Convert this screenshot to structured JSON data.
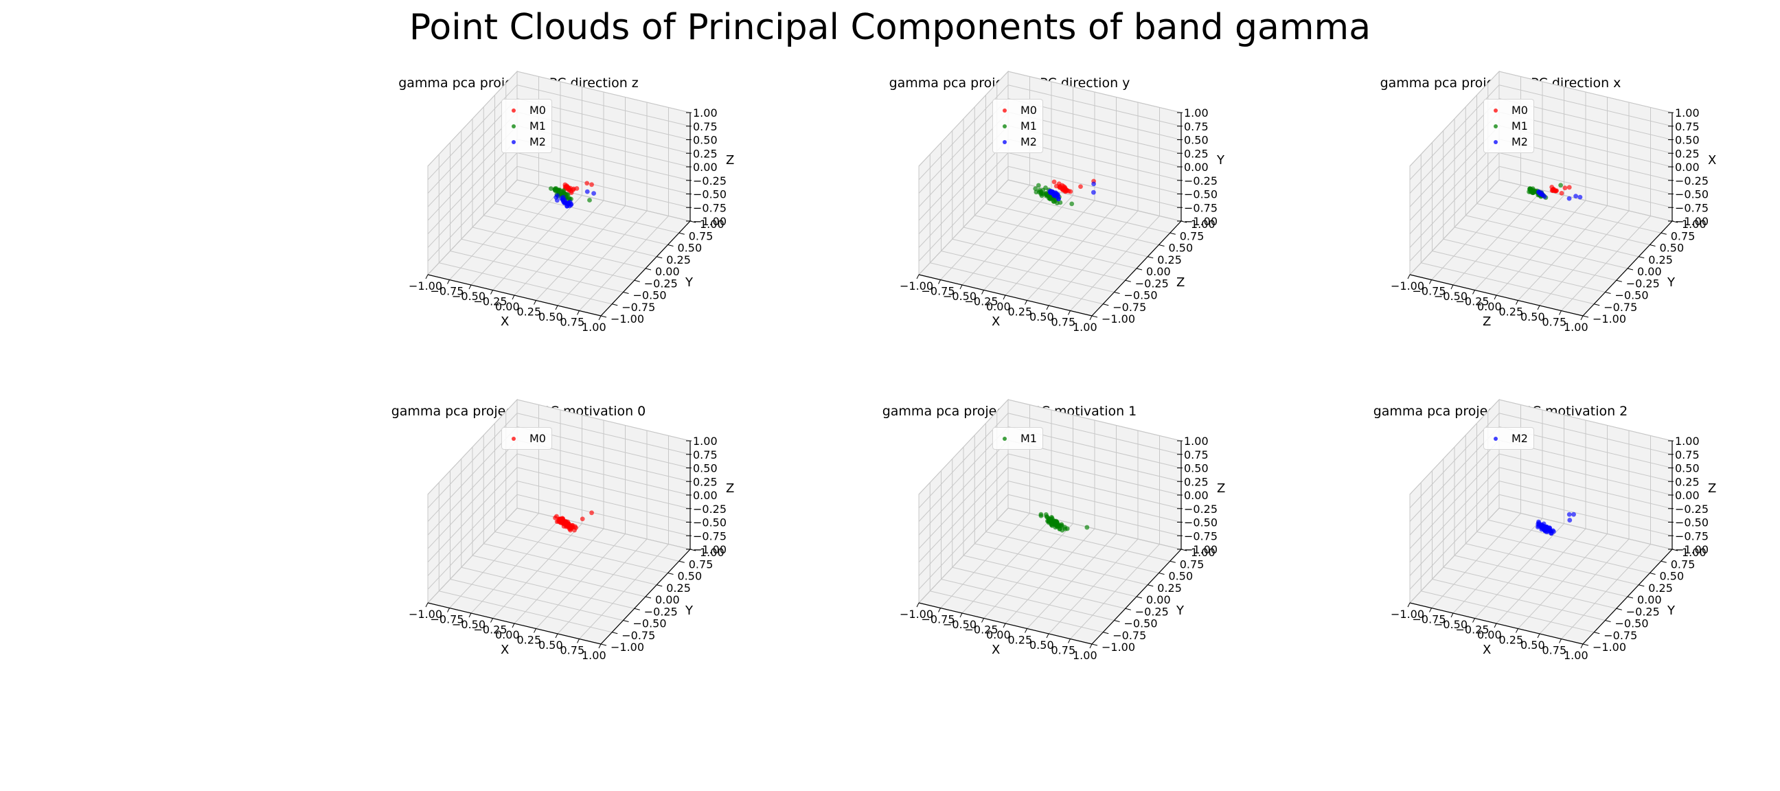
{
  "figure": {
    "title": "Point Clouds of Principal Components of band gamma"
  },
  "colors": {
    "M0": "#ff0000",
    "M1": "#008000",
    "M2": "#0000ff",
    "pane": "#f2f2f2",
    "grid": "#c8c8c8"
  },
  "chart_data": [
    {
      "type": "scatter",
      "title": "gamma pca projection PC direction z",
      "xlabel": "X",
      "ylabel": "Y",
      "zlabel": "Z",
      "xlim": [
        -1,
        1
      ],
      "ylim": [
        -1,
        1
      ],
      "zlim": [
        -1,
        1
      ],
      "ticks": [
        "−1.00",
        "−0.75",
        "−0.50",
        "−0.25",
        "0.00",
        "0.25",
        "0.50",
        "0.75",
        "1.00"
      ],
      "legend": [
        "M0",
        "M1",
        "M2"
      ],
      "series": [
        {
          "name": "M0",
          "clusters": [
            {
              "center": [
                0.05,
                0.1,
                0.05
              ],
              "spread": [
                0.07,
                0.05,
                0.05
              ],
              "count": 20
            }
          ],
          "outliers": [
            [
              0.3,
              0.15,
              0.15
            ],
            [
              0.22,
              0.2,
              0.1
            ],
            [
              0.18,
              0.05,
              0.12
            ]
          ]
        },
        {
          "name": "M1",
          "clusters": [
            {
              "center": [
                0.02,
                0.05,
                -0.05
              ],
              "spread": [
                0.1,
                0.08,
                0.07
              ],
              "count": 45
            }
          ],
          "outliers": [
            [
              0.25,
              0.2,
              -0.2
            ],
            [
              0.15,
              -0.05,
              0.0
            ]
          ]
        },
        {
          "name": "M2",
          "clusters": [
            {
              "center": [
                0.06,
                0.0,
                -0.12
              ],
              "spread": [
                0.07,
                0.06,
                0.05
              ],
              "count": 25
            }
          ],
          "outliers": [
            [
              0.35,
              0.1,
              0.05
            ],
            [
              0.25,
              0.15,
              0.0
            ]
          ]
        }
      ]
    },
    {
      "type": "scatter",
      "title": "gamma pca projection PC direction y",
      "xlabel": "X",
      "ylabel": "Z",
      "zlabel": "Y",
      "xlim": [
        -1,
        1
      ],
      "ylim": [
        -1,
        1
      ],
      "zlim": [
        -1,
        1
      ],
      "ticks": [
        "−1.00",
        "−0.75",
        "−0.50",
        "−0.25",
        "0.00",
        "0.25",
        "0.50",
        "0.75",
        "1.00"
      ],
      "legend": [
        "M0",
        "M1",
        "M2"
      ],
      "series": [
        {
          "name": "M0",
          "clusters": [
            {
              "center": [
                0.08,
                0.15,
                0.0
              ],
              "spread": [
                0.07,
                0.05,
                0.05
              ],
              "count": 22
            }
          ],
          "outliers": [
            [
              0.35,
              0.3,
              0.1
            ],
            [
              0.25,
              0.2,
              0.05
            ]
          ]
        },
        {
          "name": "M1",
          "clusters": [
            {
              "center": [
                0.0,
                0.0,
                -0.05
              ],
              "spread": [
                0.12,
                0.1,
                0.06
              ],
              "count": 50
            }
          ],
          "outliers": [
            [
              0.2,
              0.1,
              -0.2
            ]
          ]
        },
        {
          "name": "M2",
          "clusters": [
            {
              "center": [
                0.02,
                0.05,
                -0.05
              ],
              "spread": [
                0.07,
                0.05,
                0.05
              ],
              "count": 25
            }
          ],
          "outliers": [
            [
              0.4,
              0.2,
              0.0
            ],
            [
              0.35,
              0.3,
              0.05
            ]
          ]
        }
      ]
    },
    {
      "type": "scatter",
      "title": "gamma pca projection PC direction x",
      "xlabel": "Z",
      "ylabel": "Y",
      "zlabel": "X",
      "xlim": [
        -1,
        1
      ],
      "ylim": [
        -1,
        1
      ],
      "zlim": [
        -1,
        1
      ],
      "ticks": [
        "−1.00",
        "−0.75",
        "−0.50",
        "−0.25",
        "0.00",
        "0.25",
        "0.50",
        "0.75",
        "1.00"
      ],
      "legend": [
        "M0",
        "M1",
        "M2"
      ],
      "series": [
        {
          "name": "M0",
          "clusters": [
            {
              "center": [
                0.1,
                0.1,
                0.02
              ],
              "spread": [
                0.05,
                0.04,
                0.03
              ],
              "count": 12
            }
          ],
          "outliers": [
            [
              0.2,
              0.15,
              0.05
            ],
            [
              0.25,
              0.15,
              0.08
            ]
          ]
        },
        {
          "name": "M1",
          "clusters": [
            {
              "center": [
                -0.05,
                0.0,
                0.0
              ],
              "spread": [
                0.08,
                0.05,
                0.03
              ],
              "count": 40
            }
          ],
          "outliers": [
            [
              0.15,
              0.15,
              0.08
            ]
          ]
        },
        {
          "name": "M2",
          "clusters": [
            {
              "center": [
                0.0,
                0.0,
                0.0
              ],
              "spread": [
                0.04,
                0.03,
                0.02
              ],
              "count": 8
            }
          ],
          "outliers": [
            [
              0.35,
              0.1,
              0.0
            ],
            [
              0.4,
              0.1,
              0.0
            ],
            [
              0.3,
              0.05,
              -0.02
            ]
          ]
        }
      ]
    },
    {
      "type": "scatter",
      "title": "gamma pca projection PC motivation 0",
      "xlabel": "X",
      "ylabel": "Y",
      "zlabel": "Z",
      "xlim": [
        -1,
        1
      ],
      "ylim": [
        -1,
        1
      ],
      "zlim": [
        -1,
        1
      ],
      "ticks": [
        "−1.00",
        "−0.75",
        "−0.50",
        "−0.25",
        "0.00",
        "0.25",
        "0.50",
        "0.75",
        "1.00"
      ],
      "legend": [
        "M0"
      ],
      "series": [
        {
          "name": "M0",
          "clusters": [
            {
              "center": [
                0.05,
                0.05,
                -0.05
              ],
              "spread": [
                0.09,
                0.07,
                0.06
              ],
              "count": 70
            }
          ],
          "outliers": [
            [
              0.3,
              0.15,
              0.15
            ],
            [
              0.22,
              0.1,
              0.05
            ]
          ]
        }
      ]
    },
    {
      "type": "scatter",
      "title": "gamma pca projection PC motivation 1",
      "xlabel": "X",
      "ylabel": "Y",
      "zlabel": "Z",
      "xlim": [
        -1,
        1
      ],
      "ylim": [
        -1,
        1
      ],
      "zlim": [
        -1,
        1
      ],
      "ticks": [
        "−1.00",
        "−0.75",
        "−0.50",
        "−0.25",
        "0.00",
        "0.25",
        "0.50",
        "0.75",
        "1.00"
      ],
      "legend": [
        "M1"
      ],
      "series": [
        {
          "name": "M1",
          "clusters": [
            {
              "center": [
                0.02,
                0.05,
                -0.05
              ],
              "spread": [
                0.11,
                0.08,
                0.07
              ],
              "count": 60
            }
          ],
          "outliers": [
            [
              0.35,
              0.15,
              -0.1
            ],
            [
              0.2,
              0.0,
              -0.05
            ]
          ]
        }
      ]
    },
    {
      "type": "scatter",
      "title": "gamma pca projection PC motivation 2",
      "xlabel": "X",
      "ylabel": "Y",
      "zlabel": "Z",
      "xlim": [
        -1,
        1
      ],
      "ylim": [
        -1,
        1
      ],
      "zlim": [
        -1,
        1
      ],
      "ticks": [
        "−1.00",
        "−0.75",
        "−0.50",
        "−0.25",
        "0.00",
        "0.25",
        "0.50",
        "0.75",
        "1.00"
      ],
      "legend": [
        "M2"
      ],
      "series": [
        {
          "name": "M2",
          "clusters": [
            {
              "center": [
                0.05,
                0.0,
                -0.1
              ],
              "spread": [
                0.08,
                0.06,
                0.05
              ],
              "count": 55
            }
          ],
          "outliers": [
            [
              0.25,
              0.15,
              0.1
            ],
            [
              0.3,
              0.15,
              0.12
            ],
            [
              0.28,
              0.1,
              0.05
            ]
          ]
        }
      ]
    }
  ]
}
